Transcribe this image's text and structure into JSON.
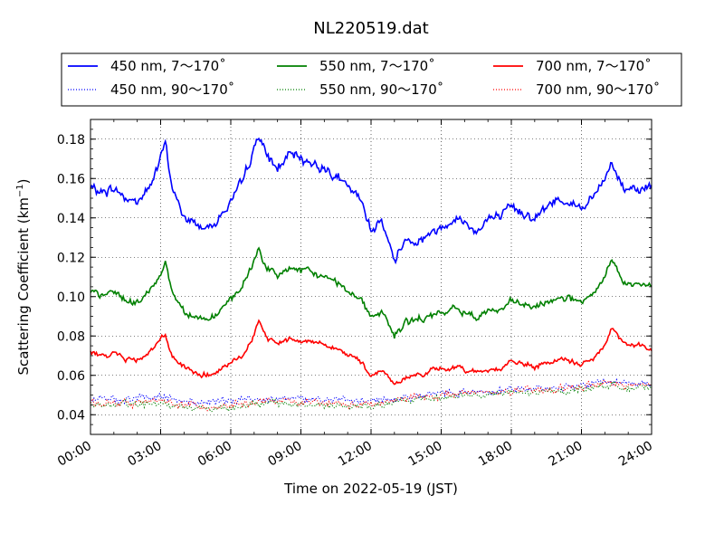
{
  "chart_data": {
    "type": "line",
    "title": "NL220519.dat",
    "xlabel": "Time on 2022-05-19 (JST)",
    "ylabel": "Scattering Coefficient (km",
    "ylabel_sup": "−1",
    "ylabel_end": ")",
    "x_tick_labels": [
      "00:00",
      "03:00",
      "06:00",
      "09:00",
      "12:00",
      "15:00",
      "18:00",
      "21:00",
      "24:00"
    ],
    "xlim": [
      0,
      24
    ],
    "y_ticks": [
      0.04,
      0.06,
      0.08,
      0.1,
      0.12,
      0.14,
      0.16,
      0.18
    ],
    "y_tick_labels": [
      "0.04",
      "0.06",
      "0.08",
      "0.10",
      "0.12",
      "0.14",
      "0.16",
      "0.18"
    ],
    "ylim": [
      0.03,
      0.19
    ],
    "grid": true,
    "legend_position": "top",
    "series": [
      {
        "name": "450 nm, 7～170˚",
        "color": "#0000ff",
        "style": "solid",
        "x": [
          0,
          0.5,
          1,
          1.5,
          2,
          2.5,
          3,
          3.2,
          3.5,
          4,
          4.5,
          5,
          5.5,
          6,
          6.5,
          7,
          7.2,
          7.5,
          8,
          8.5,
          9,
          9.5,
          10,
          10.5,
          11,
          11.5,
          12,
          12.5,
          13,
          13.5,
          14,
          14.5,
          15,
          15.5,
          16,
          16.5,
          17,
          17.5,
          18,
          18.5,
          19,
          19.5,
          20,
          20.5,
          21,
          21.5,
          22,
          22.3,
          22.8,
          23.5,
          24
        ],
        "y": [
          0.155,
          0.153,
          0.155,
          0.15,
          0.148,
          0.155,
          0.17,
          0.178,
          0.155,
          0.14,
          0.137,
          0.135,
          0.14,
          0.148,
          0.158,
          0.175,
          0.183,
          0.172,
          0.165,
          0.172,
          0.17,
          0.168,
          0.165,
          0.162,
          0.155,
          0.15,
          0.135,
          0.138,
          0.118,
          0.13,
          0.128,
          0.132,
          0.135,
          0.14,
          0.138,
          0.133,
          0.14,
          0.14,
          0.145,
          0.143,
          0.14,
          0.145,
          0.15,
          0.148,
          0.145,
          0.15,
          0.16,
          0.168,
          0.155,
          0.156,
          0.155
        ]
      },
      {
        "name": "550 nm, 7～170˚",
        "color": "#008000",
        "style": "solid",
        "x": [
          0,
          0.5,
          1,
          1.5,
          2,
          2.5,
          3,
          3.2,
          3.5,
          4,
          4.5,
          5,
          5.5,
          6,
          6.5,
          7,
          7.2,
          7.5,
          8,
          8.5,
          9,
          9.5,
          10,
          10.5,
          11,
          11.5,
          12,
          12.5,
          13,
          13.5,
          14,
          14.5,
          15,
          15.5,
          16,
          16.5,
          17,
          17.5,
          18,
          18.5,
          19,
          19.5,
          20,
          20.5,
          21,
          21.5,
          22,
          22.3,
          22.8,
          23.5,
          24
        ],
        "y": [
          0.102,
          0.1,
          0.103,
          0.098,
          0.097,
          0.102,
          0.112,
          0.118,
          0.102,
          0.093,
          0.09,
          0.088,
          0.092,
          0.098,
          0.105,
          0.118,
          0.125,
          0.115,
          0.11,
          0.115,
          0.113,
          0.112,
          0.11,
          0.108,
          0.103,
          0.1,
          0.09,
          0.092,
          0.08,
          0.087,
          0.088,
          0.09,
          0.091,
          0.094,
          0.092,
          0.09,
          0.093,
          0.093,
          0.097,
          0.096,
          0.094,
          0.097,
          0.1,
          0.099,
          0.097,
          0.1,
          0.11,
          0.12,
          0.106,
          0.106,
          0.105
        ]
      },
      {
        "name": "700 nm, 7～170˚",
        "color": "#ff0000",
        "style": "solid",
        "x": [
          0,
          0.5,
          1,
          1.5,
          2,
          2.5,
          3,
          3.2,
          3.5,
          4,
          4.5,
          5,
          5.5,
          6,
          6.5,
          7,
          7.2,
          7.5,
          8,
          8.5,
          9,
          9.5,
          10,
          10.5,
          11,
          11.5,
          12,
          12.5,
          13,
          13.5,
          14,
          14.5,
          15,
          15.5,
          16,
          16.5,
          17,
          17.5,
          18,
          18.5,
          19,
          19.5,
          20,
          20.5,
          21,
          21.5,
          22,
          22.3,
          22.8,
          23.5,
          24
        ],
        "y": [
          0.072,
          0.07,
          0.072,
          0.068,
          0.068,
          0.072,
          0.078,
          0.08,
          0.07,
          0.064,
          0.061,
          0.06,
          0.062,
          0.066,
          0.07,
          0.08,
          0.087,
          0.08,
          0.076,
          0.079,
          0.078,
          0.077,
          0.076,
          0.074,
          0.07,
          0.068,
          0.06,
          0.063,
          0.055,
          0.059,
          0.06,
          0.062,
          0.063,
          0.064,
          0.063,
          0.062,
          0.063,
          0.063,
          0.067,
          0.066,
          0.064,
          0.066,
          0.068,
          0.067,
          0.066,
          0.068,
          0.075,
          0.085,
          0.076,
          0.075,
          0.074
        ]
      },
      {
        "name": "450 nm, 90～170˚",
        "color": "#0000ff",
        "style": "dotted",
        "x": [
          0,
          2,
          3,
          4,
          5,
          6,
          7,
          8,
          9,
          10,
          11,
          12,
          13,
          14,
          15,
          16,
          17,
          18,
          19,
          20,
          21,
          22,
          23,
          24
        ],
        "y": [
          0.048,
          0.048,
          0.049,
          0.047,
          0.046,
          0.047,
          0.048,
          0.049,
          0.048,
          0.048,
          0.047,
          0.047,
          0.048,
          0.05,
          0.051,
          0.052,
          0.052,
          0.053,
          0.053,
          0.054,
          0.055,
          0.057,
          0.056,
          0.056
        ]
      },
      {
        "name": "550 nm, 90～170˚",
        "color": "#008000",
        "style": "dotted",
        "x": [
          0,
          2,
          3,
          4,
          5,
          6,
          7,
          8,
          9,
          10,
          11,
          12,
          13,
          14,
          15,
          16,
          17,
          18,
          19,
          20,
          21,
          22,
          23,
          24
        ],
        "y": [
          0.045,
          0.045,
          0.046,
          0.044,
          0.043,
          0.044,
          0.045,
          0.046,
          0.045,
          0.045,
          0.044,
          0.044,
          0.046,
          0.048,
          0.049,
          0.05,
          0.05,
          0.051,
          0.051,
          0.052,
          0.053,
          0.055,
          0.054,
          0.053
        ]
      },
      {
        "name": "700 nm, 90～170˚",
        "color": "#ff0000",
        "style": "dotted",
        "x": [
          0,
          2,
          3,
          4,
          5,
          6,
          7,
          8,
          9,
          10,
          11,
          12,
          13,
          14,
          15,
          16,
          17,
          18,
          19,
          20,
          21,
          22,
          23,
          24
        ],
        "y": [
          0.046,
          0.046,
          0.047,
          0.045,
          0.044,
          0.045,
          0.046,
          0.047,
          0.046,
          0.046,
          0.045,
          0.045,
          0.047,
          0.049,
          0.05,
          0.051,
          0.051,
          0.052,
          0.052,
          0.053,
          0.054,
          0.056,
          0.055,
          0.054
        ]
      }
    ]
  }
}
